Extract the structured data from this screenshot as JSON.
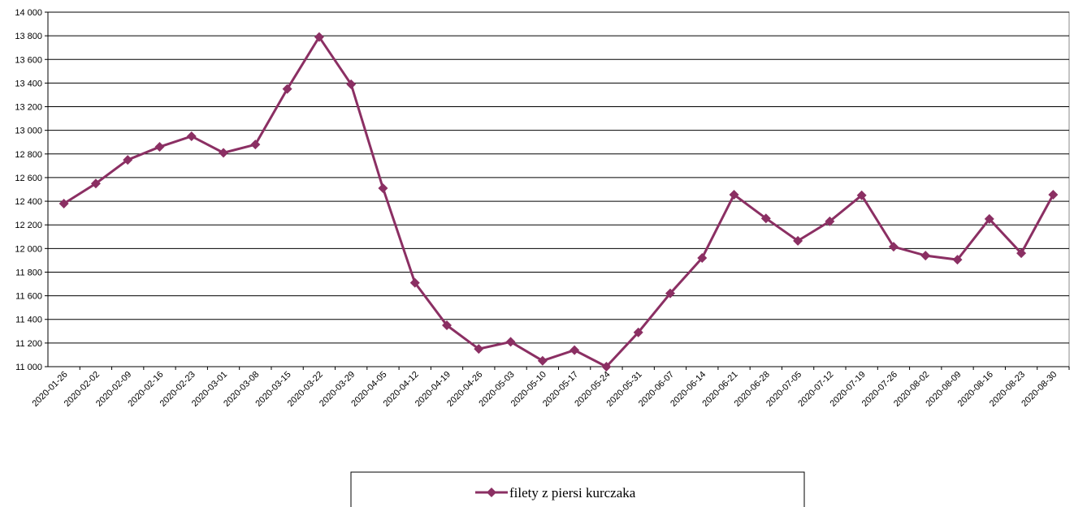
{
  "chart_data": {
    "type": "line",
    "categories": [
      "2020-01-26",
      "2020-02-02",
      "2020-02-09",
      "2020-02-16",
      "2020-02-23",
      "2020-03-01",
      "2020-03-08",
      "2020-03-15",
      "2020-03-22",
      "2020-03-29",
      "2020-04-05",
      "2020-04-12",
      "2020-04-19",
      "2020-04-26",
      "2020-05-03",
      "2020-05-10",
      "2020-05-17",
      "2020-05-24",
      "2020-05-31",
      "2020-06-07",
      "2020-06-14",
      "2020-06-21",
      "2020-06-28",
      "2020-07-05",
      "2020-07-12",
      "2020-07-19",
      "2020-07-26",
      "2020-08-02",
      "2020-08-09",
      "2020-08-16",
      "2020-08-23",
      "2020-08-30"
    ],
    "series": [
      {
        "name": "filety z piersi kurczaka",
        "color": "#8b2f63",
        "values": [
          12380,
          12550,
          12750,
          12860,
          12950,
          12810,
          12880,
          13350,
          13790,
          13390,
          12510,
          11710,
          11350,
          11150,
          11210,
          11050,
          11140,
          11000,
          11290,
          11620,
          11920,
          12455,
          12255,
          12065,
          12230,
          12450,
          12015,
          11940,
          11905,
          12250,
          11960,
          12455
        ]
      }
    ],
    "ylim": [
      11000,
      14000
    ],
    "yticks": [
      {
        "value": 11000,
        "label": "11 000"
      },
      {
        "value": 11200,
        "label": "11 200"
      },
      {
        "value": 11400,
        "label": "11 400"
      },
      {
        "value": 11600,
        "label": "11 600"
      },
      {
        "value": 11800,
        "label": "11 800"
      },
      {
        "value": 12000,
        "label": "12 000"
      },
      {
        "value": 12200,
        "label": "12 200"
      },
      {
        "value": 12400,
        "label": "12 400"
      },
      {
        "value": 12600,
        "label": "12 600"
      },
      {
        "value": 12800,
        "label": "12 800"
      },
      {
        "value": 13000,
        "label": "13 000"
      },
      {
        "value": 13200,
        "label": "13 200"
      },
      {
        "value": 13400,
        "label": "13 400"
      },
      {
        "value": 13600,
        "label": "13 600"
      },
      {
        "value": 13800,
        "label": "13 800"
      },
      {
        "value": 14000,
        "label": "14 000"
      }
    ],
    "grid": true,
    "legend": "bottom"
  }
}
